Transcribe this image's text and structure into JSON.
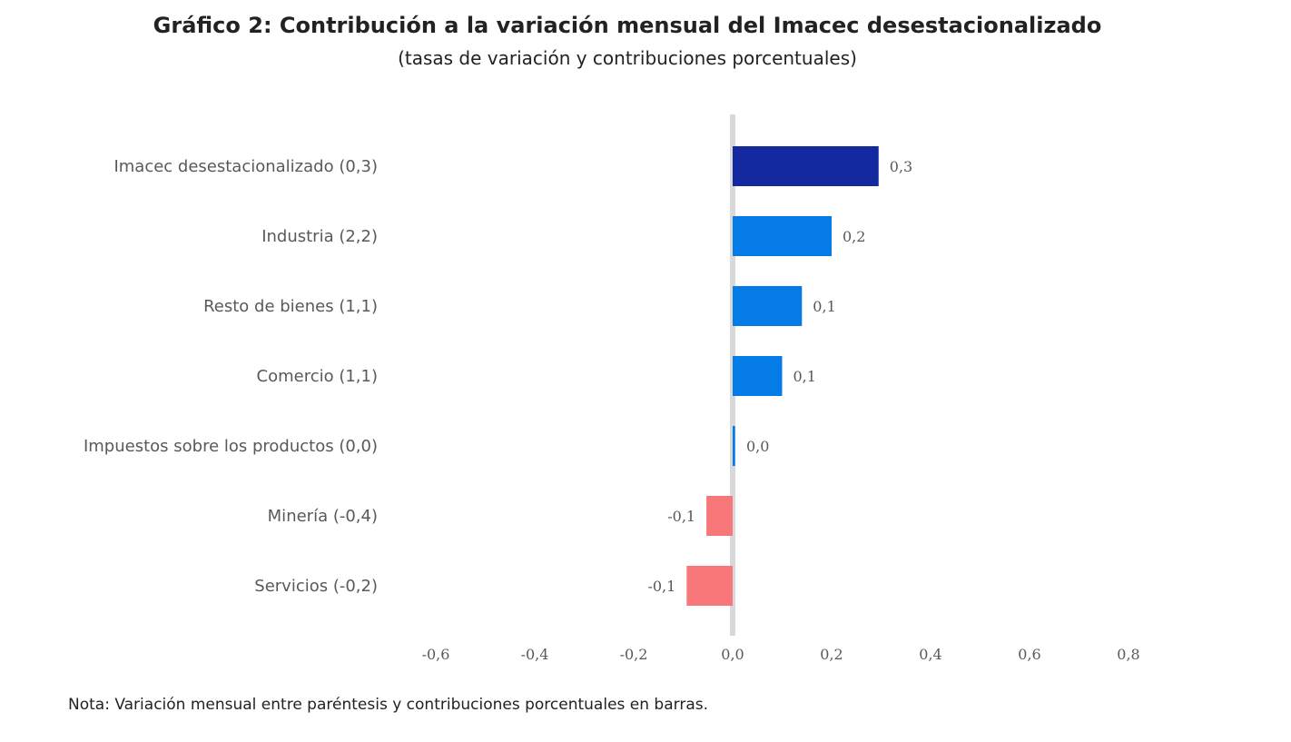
{
  "chart_data": {
    "type": "bar",
    "orientation": "horizontal",
    "title": "Gráfico 2: Contribución a la variación mensual del Imacec desestacionalizado",
    "subtitle": "(tasas de variación y contribuciones porcentuales)",
    "categories": [
      "Imacec desestacionalizado (0,3)",
      "Industria (2,2)",
      "Resto de bienes (1,1)",
      "Comercio (1,1)",
      "Impuestos sobre los productos (0,0)",
      "Minería (-0,4)",
      "Servicios (-0,2)"
    ],
    "values": [
      0.295,
      0.2,
      0.14,
      0.1,
      0.005,
      -0.053,
      -0.093
    ],
    "value_labels": [
      "0,3",
      "0,2",
      "0,1",
      "0,1",
      "0,0",
      "-0,1",
      "-0,1"
    ],
    "bar_colors": [
      "#1428a0",
      "#057be8",
      "#057be8",
      "#057be8",
      "#057be8",
      "#f7777a",
      "#f7777a"
    ],
    "xlim": [
      -0.6,
      0.8
    ],
    "xticks": [
      -0.6,
      -0.4,
      -0.2,
      0.0,
      0.2,
      0.4,
      0.6,
      0.8
    ],
    "xtick_labels": [
      "-0,6",
      "-0,4",
      "-0,2",
      "0,0",
      "0,2",
      "0,4",
      "0,6",
      "0,8"
    ],
    "xlabel": "",
    "ylabel": "",
    "grid": false,
    "zero_line_color": "#d9d9d9"
  },
  "note": "Nota: Variación mensual entre paréntesis y contribuciones porcentuales en barras."
}
